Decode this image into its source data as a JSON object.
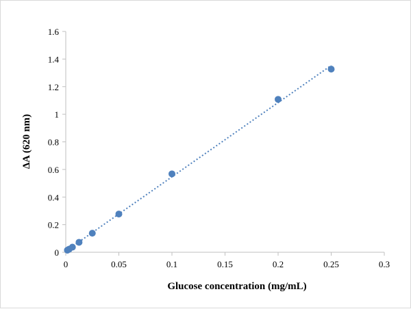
{
  "chart_data": {
    "type": "scatter",
    "title": "",
    "xlabel": "Glucose concentration (mg/mL)",
    "ylabel": "ΔA (620 nm)",
    "xlim": [
      0,
      0.3
    ],
    "ylim": [
      0,
      1.6
    ],
    "x_ticks": [
      "0",
      "0.05",
      "0.1",
      "0.15",
      "0.2",
      "0.25",
      "0.3"
    ],
    "y_ticks": [
      "0",
      "0.2",
      "0.4",
      "0.6",
      "0.8",
      "1",
      "1.2",
      "1.4",
      "1.6"
    ],
    "grid": false,
    "legend": "none",
    "trendline": {
      "type": "linear",
      "style": "dotted"
    },
    "series": [
      {
        "color": "#4F81BD",
        "x": [
          0.0015625,
          0.003125,
          0.00625,
          0.0125,
          0.025,
          0.05,
          0.1,
          0.2,
          0.25
        ],
        "y": [
          0.015,
          0.022,
          0.037,
          0.072,
          0.138,
          0.277,
          0.568,
          1.108,
          1.327
        ]
      }
    ]
  }
}
